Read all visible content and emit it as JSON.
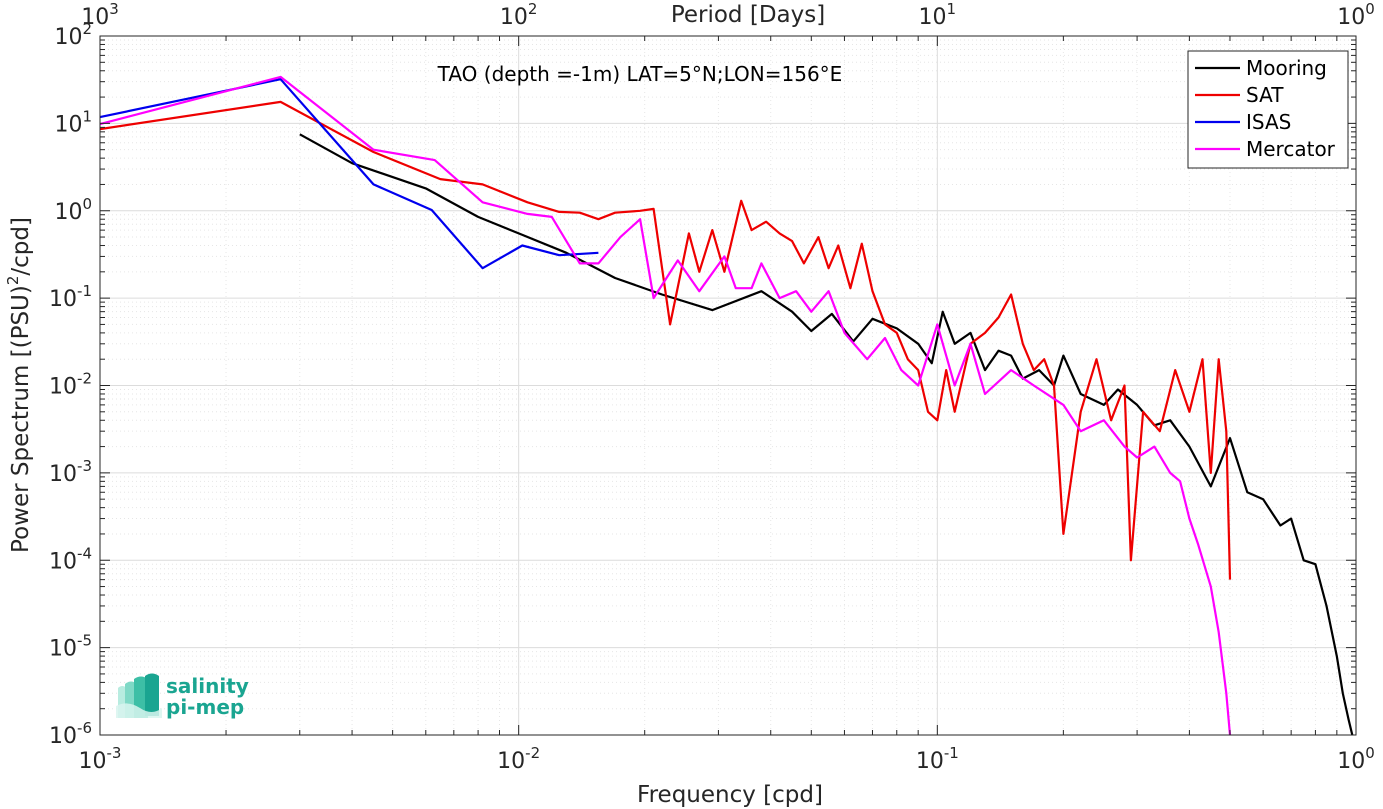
{
  "chart_data": {
    "type": "line",
    "title": "TAO (depth =-1m) LAT=5°N;LON=156°E",
    "xlabel": "Frequency [cpd]",
    "ylabel": "Power Spectrum [(PSU)",
    "ylabel_sup": "2",
    "ylabel_tail": "/cpd]",
    "x2label": "Period [Days]",
    "xscale": "log",
    "yscale": "log",
    "xlim": [
      0.001,
      1
    ],
    "ylim": [
      1e-06,
      100
    ],
    "grid": true,
    "legend_position": "top-right",
    "x_ticks": [
      {
        "value": 0.001,
        "base": "10",
        "exp": "-3"
      },
      {
        "value": 0.01,
        "base": "10",
        "exp": "-2"
      },
      {
        "value": 0.1,
        "base": "10",
        "exp": "-1"
      },
      {
        "value": 1,
        "base": "10",
        "exp": "0"
      }
    ],
    "y_ticks": [
      {
        "value": 1e-06,
        "base": "10",
        "exp": "-6"
      },
      {
        "value": 1e-05,
        "base": "10",
        "exp": "-5"
      },
      {
        "value": 0.0001,
        "base": "10",
        "exp": "-4"
      },
      {
        "value": 0.001,
        "base": "10",
        "exp": "-3"
      },
      {
        "value": 0.01,
        "base": "10",
        "exp": "-2"
      },
      {
        "value": 0.1,
        "base": "10",
        "exp": "-1"
      },
      {
        "value": 1,
        "base": "10",
        "exp": "0"
      },
      {
        "value": 10,
        "base": "10",
        "exp": "1"
      },
      {
        "value": 100,
        "base": "10",
        "exp": "2"
      }
    ],
    "x2_ticks": [
      {
        "value": 0.001,
        "base": "10",
        "exp": "3"
      },
      {
        "value": 0.01,
        "base": "10",
        "exp": "2"
      },
      {
        "value": 0.1,
        "base": "10",
        "exp": "1"
      },
      {
        "value": 1,
        "base": "10",
        "exp": "0"
      }
    ],
    "series": [
      {
        "name": "Mooring",
        "color": "#000000",
        "points": [
          [
            0.003,
            7.5
          ],
          [
            0.004,
            3.5
          ],
          [
            0.006,
            1.8
          ],
          [
            0.008,
            0.85
          ],
          [
            0.01,
            0.55
          ],
          [
            0.013,
            0.33
          ],
          [
            0.017,
            0.17
          ],
          [
            0.022,
            0.11
          ],
          [
            0.029,
            0.073
          ],
          [
            0.038,
            0.12
          ],
          [
            0.045,
            0.07
          ],
          [
            0.05,
            0.042
          ],
          [
            0.056,
            0.066
          ],
          [
            0.063,
            0.032
          ],
          [
            0.07,
            0.058
          ],
          [
            0.08,
            0.045
          ],
          [
            0.09,
            0.03
          ],
          [
            0.097,
            0.018
          ],
          [
            0.103,
            0.07
          ],
          [
            0.11,
            0.03
          ],
          [
            0.12,
            0.04
          ],
          [
            0.13,
            0.015
          ],
          [
            0.14,
            0.025
          ],
          [
            0.15,
            0.022
          ],
          [
            0.16,
            0.012
          ],
          [
            0.175,
            0.015
          ],
          [
            0.19,
            0.01
          ],
          [
            0.2,
            0.022
          ],
          [
            0.22,
            0.008
          ],
          [
            0.25,
            0.006
          ],
          [
            0.27,
            0.009
          ],
          [
            0.3,
            0.006
          ],
          [
            0.33,
            0.0035
          ],
          [
            0.36,
            0.004
          ],
          [
            0.4,
            0.002
          ],
          [
            0.45,
            0.0007
          ],
          [
            0.5,
            0.0025
          ],
          [
            0.55,
            0.0006
          ],
          [
            0.6,
            0.0005
          ],
          [
            0.66,
            0.00025
          ],
          [
            0.7,
            0.0003
          ],
          [
            0.75,
            0.0001
          ],
          [
            0.8,
            9e-05
          ],
          [
            0.85,
            3e-05
          ],
          [
            0.9,
            8e-06
          ],
          [
            0.93,
            3e-06
          ],
          [
            0.96,
            1.5e-06
          ],
          [
            0.98,
            1e-06
          ]
        ]
      },
      {
        "name": "SAT",
        "color": "#ee0000",
        "points": [
          [
            0.001,
            8.6
          ],
          [
            0.0027,
            17.6
          ],
          [
            0.0045,
            4.7
          ],
          [
            0.0065,
            2.3
          ],
          [
            0.0082,
            2.0
          ],
          [
            0.0105,
            1.25
          ],
          [
            0.0125,
            0.97
          ],
          [
            0.014,
            0.95
          ],
          [
            0.0155,
            0.8
          ],
          [
            0.017,
            0.95
          ],
          [
            0.0195,
            1.0
          ],
          [
            0.021,
            1.05
          ],
          [
            0.023,
            0.05
          ],
          [
            0.0255,
            0.55
          ],
          [
            0.027,
            0.2
          ],
          [
            0.029,
            0.6
          ],
          [
            0.031,
            0.2
          ],
          [
            0.034,
            1.3
          ],
          [
            0.036,
            0.6
          ],
          [
            0.039,
            0.75
          ],
          [
            0.042,
            0.55
          ],
          [
            0.045,
            0.45
          ],
          [
            0.048,
            0.25
          ],
          [
            0.052,
            0.5
          ],
          [
            0.055,
            0.22
          ],
          [
            0.058,
            0.4
          ],
          [
            0.062,
            0.13
          ],
          [
            0.066,
            0.42
          ],
          [
            0.07,
            0.12
          ],
          [
            0.075,
            0.05
          ],
          [
            0.08,
            0.04
          ],
          [
            0.085,
            0.02
          ],
          [
            0.09,
            0.015
          ],
          [
            0.095,
            0.005
          ],
          [
            0.1,
            0.004
          ],
          [
            0.105,
            0.015
          ],
          [
            0.11,
            0.005
          ],
          [
            0.12,
            0.03
          ],
          [
            0.13,
            0.04
          ],
          [
            0.14,
            0.06
          ],
          [
            0.15,
            0.11
          ],
          [
            0.16,
            0.03
          ],
          [
            0.17,
            0.015
          ],
          [
            0.18,
            0.02
          ],
          [
            0.19,
            0.01
          ],
          [
            0.2,
            0.0002
          ],
          [
            0.22,
            0.005
          ],
          [
            0.24,
            0.02
          ],
          [
            0.26,
            0.004
          ],
          [
            0.28,
            0.01
          ],
          [
            0.29,
            0.0001
          ],
          [
            0.31,
            0.005
          ],
          [
            0.34,
            0.003
          ],
          [
            0.37,
            0.015
          ],
          [
            0.4,
            0.005
          ],
          [
            0.43,
            0.02
          ],
          [
            0.45,
            0.001
          ],
          [
            0.47,
            0.02
          ],
          [
            0.49,
            0.003
          ],
          [
            0.5,
            6e-05
          ]
        ]
      },
      {
        "name": "ISAS",
        "color": "#0000ee",
        "points": [
          [
            0.001,
            11.8
          ],
          [
            0.0027,
            32
          ],
          [
            0.0045,
            2.0
          ],
          [
            0.0062,
            1.02
          ],
          [
            0.0082,
            0.22
          ],
          [
            0.0102,
            0.4
          ],
          [
            0.0125,
            0.31
          ],
          [
            0.0155,
            0.33
          ]
        ]
      },
      {
        "name": "Mercator",
        "color": "#ff00ff",
        "points": [
          [
            0.001,
            9.8
          ],
          [
            0.0027,
            34
          ],
          [
            0.0045,
            5.0
          ],
          [
            0.0063,
            3.8
          ],
          [
            0.0082,
            1.25
          ],
          [
            0.0105,
            0.92
          ],
          [
            0.012,
            0.85
          ],
          [
            0.014,
            0.25
          ],
          [
            0.0155,
            0.25
          ],
          [
            0.0175,
            0.5
          ],
          [
            0.0195,
            0.8
          ],
          [
            0.021,
            0.1
          ],
          [
            0.024,
            0.27
          ],
          [
            0.027,
            0.12
          ],
          [
            0.031,
            0.3
          ],
          [
            0.033,
            0.13
          ],
          [
            0.036,
            0.13
          ],
          [
            0.038,
            0.25
          ],
          [
            0.042,
            0.1
          ],
          [
            0.046,
            0.12
          ],
          [
            0.05,
            0.07
          ],
          [
            0.055,
            0.12
          ],
          [
            0.06,
            0.04
          ],
          [
            0.068,
            0.02
          ],
          [
            0.075,
            0.035
          ],
          [
            0.082,
            0.015
          ],
          [
            0.09,
            0.01
          ],
          [
            0.1,
            0.05
          ],
          [
            0.11,
            0.01
          ],
          [
            0.12,
            0.03
          ],
          [
            0.13,
            0.008
          ],
          [
            0.15,
            0.015
          ],
          [
            0.17,
            0.01
          ],
          [
            0.2,
            0.006
          ],
          [
            0.22,
            0.003
          ],
          [
            0.25,
            0.004
          ],
          [
            0.28,
            0.002
          ],
          [
            0.3,
            0.0015
          ],
          [
            0.33,
            0.002
          ],
          [
            0.36,
            0.001
          ],
          [
            0.38,
            0.0008
          ],
          [
            0.4,
            0.0003
          ],
          [
            0.42,
            0.00015
          ],
          [
            0.45,
            5e-05
          ],
          [
            0.47,
            1.5e-05
          ],
          [
            0.49,
            3e-06
          ],
          [
            0.5,
            1e-06
          ]
        ]
      }
    ]
  },
  "logo": {
    "line1": "salinity",
    "line2": "pi-mep",
    "color": "#1aa591"
  }
}
